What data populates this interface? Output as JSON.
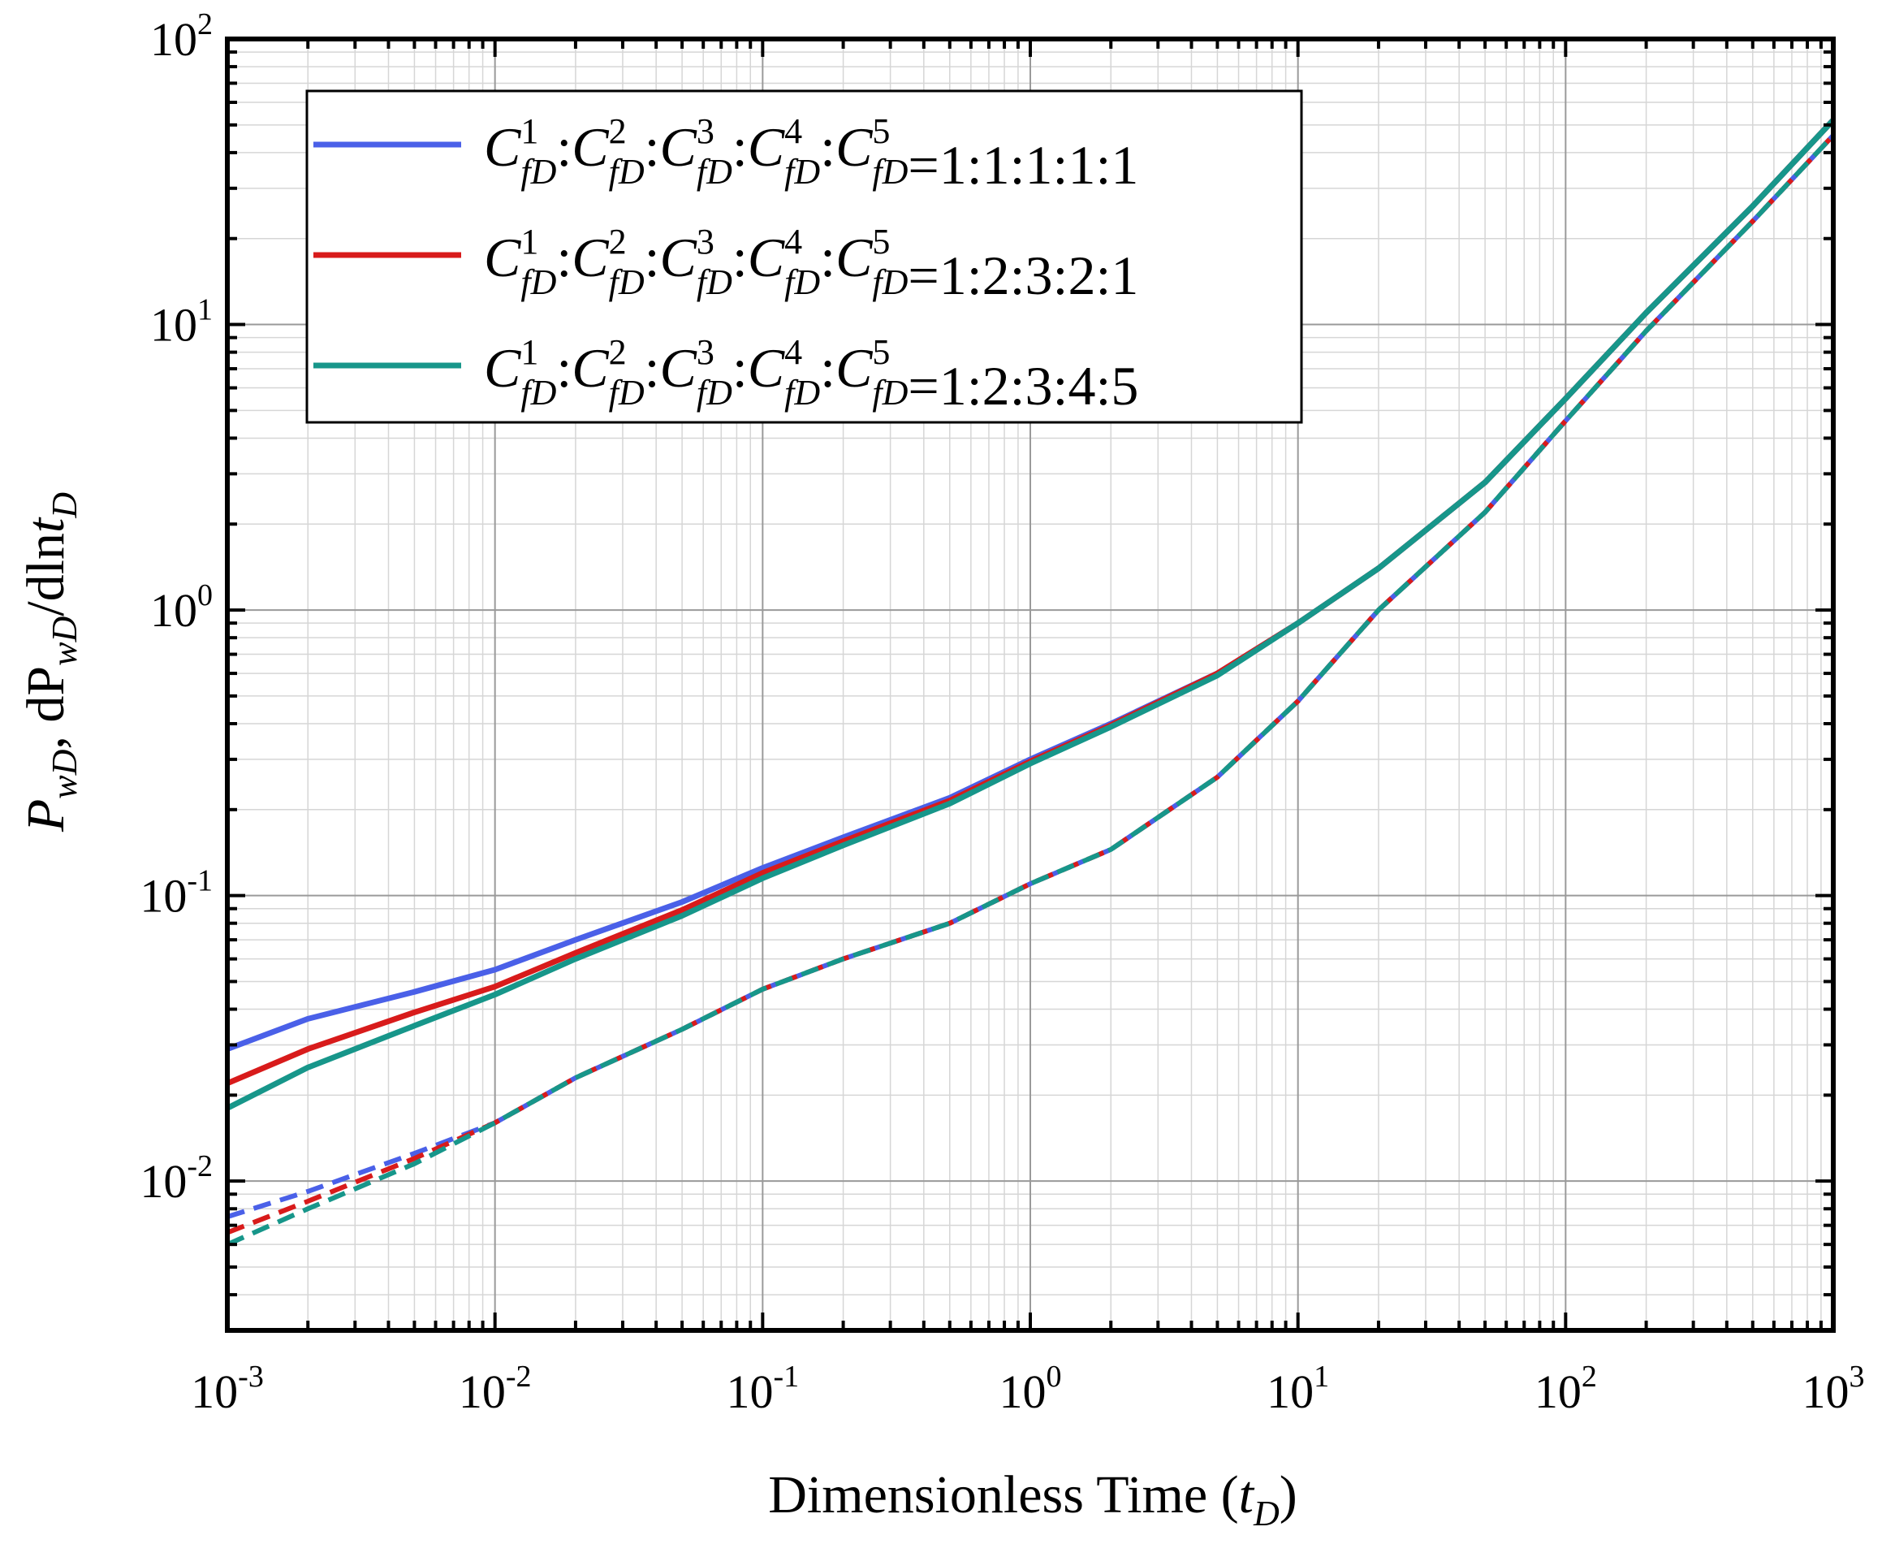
{
  "chart_data": {
    "type": "line",
    "scale": "log-log",
    "xlim": [
      0.001,
      1000
    ],
    "ylim": [
      0.003,
      100
    ],
    "grid": true,
    "legend_position": "top-left",
    "xlabel": {
      "main": "Dimensionless Time (",
      "var": "t",
      "sub": "D",
      "close": ")"
    },
    "ylabel": {
      "p1": "P",
      "s1": "wD",
      "mid": ", dP",
      "s2": "wD",
      "rest": "/dln",
      "var": "t",
      "s3": "D"
    },
    "x_ticks": [
      {
        "value": 0.001,
        "base": "10",
        "exp": "-3"
      },
      {
        "value": 0.01,
        "base": "10",
        "exp": "-2"
      },
      {
        "value": 0.1,
        "base": "10",
        "exp": "-1"
      },
      {
        "value": 1,
        "base": "10",
        "exp": "0"
      },
      {
        "value": 10,
        "base": "10",
        "exp": "1"
      },
      {
        "value": 100,
        "base": "10",
        "exp": "2"
      },
      {
        "value": 1000,
        "base": "10",
        "exp": "3"
      }
    ],
    "y_ticks": [
      {
        "value": 0.01,
        "base": "10",
        "exp": "-2"
      },
      {
        "value": 0.1,
        "base": "10",
        "exp": "-1"
      },
      {
        "value": 1,
        "base": "10",
        "exp": "0"
      },
      {
        "value": 10,
        "base": "10",
        "exp": "1"
      },
      {
        "value": 100,
        "base": "10",
        "exp": "2"
      }
    ],
    "legend_symbol": "C",
    "legend_sub": "fD",
    "series": [
      {
        "name": "C1:C2:C3:C4:C5=1:1:1:1:1",
        "ratio": "=1:1:1:1:1",
        "color": "#4a60e8",
        "pressure": [
          [
            0.001,
            0.029
          ],
          [
            0.002,
            0.037
          ],
          [
            0.005,
            0.046
          ],
          [
            0.01,
            0.055
          ],
          [
            0.02,
            0.07
          ],
          [
            0.05,
            0.095
          ],
          [
            0.1,
            0.125
          ],
          [
            0.2,
            0.16
          ],
          [
            0.5,
            0.22
          ],
          [
            1,
            0.3
          ],
          [
            2,
            0.4
          ],
          [
            5,
            0.6
          ],
          [
            10,
            0.9
          ],
          [
            20,
            1.4
          ],
          [
            50,
            2.8
          ],
          [
            100,
            5.5
          ],
          [
            200,
            11
          ],
          [
            500,
            26
          ],
          [
            1000,
            52
          ]
        ],
        "derivative": [
          [
            0.001,
            0.0075
          ],
          [
            0.002,
            0.0092
          ],
          [
            0.005,
            0.0125
          ],
          [
            0.01,
            0.016
          ],
          [
            0.02,
            0.023
          ],
          [
            0.05,
            0.034
          ],
          [
            0.1,
            0.047
          ],
          [
            0.2,
            0.06
          ],
          [
            0.5,
            0.08
          ],
          [
            1,
            0.11
          ],
          [
            2,
            0.145
          ],
          [
            5,
            0.26
          ],
          [
            10,
            0.48
          ],
          [
            20,
            1.0
          ],
          [
            50,
            2.2
          ],
          [
            100,
            4.6
          ],
          [
            200,
            9.5
          ],
          [
            500,
            23
          ],
          [
            1000,
            46
          ]
        ]
      },
      {
        "name": "C1:C2:C3:C4:C5=1:2:3:2:1",
        "ratio": "=1:2:3:2:1",
        "color": "#d81b1b",
        "pressure": [
          [
            0.001,
            0.022
          ],
          [
            0.002,
            0.029
          ],
          [
            0.005,
            0.039
          ],
          [
            0.01,
            0.048
          ],
          [
            0.02,
            0.063
          ],
          [
            0.05,
            0.089
          ],
          [
            0.1,
            0.12
          ],
          [
            0.2,
            0.155
          ],
          [
            0.5,
            0.215
          ],
          [
            1,
            0.295
          ],
          [
            2,
            0.395
          ],
          [
            5,
            0.6
          ],
          [
            10,
            0.9
          ],
          [
            20,
            1.4
          ],
          [
            50,
            2.8
          ],
          [
            100,
            5.5
          ],
          [
            200,
            11
          ],
          [
            500,
            26
          ],
          [
            1000,
            52
          ]
        ],
        "derivative": [
          [
            0.001,
            0.0066
          ],
          [
            0.002,
            0.0085
          ],
          [
            0.005,
            0.012
          ],
          [
            0.01,
            0.016
          ],
          [
            0.02,
            0.023
          ],
          [
            0.05,
            0.034
          ],
          [
            0.1,
            0.047
          ],
          [
            0.2,
            0.06
          ],
          [
            0.5,
            0.08
          ],
          [
            1,
            0.11
          ],
          [
            2,
            0.145
          ],
          [
            5,
            0.26
          ],
          [
            10,
            0.48
          ],
          [
            20,
            1.0
          ],
          [
            50,
            2.2
          ],
          [
            100,
            4.6
          ],
          [
            200,
            9.5
          ],
          [
            500,
            23
          ],
          [
            1000,
            46
          ]
        ]
      },
      {
        "name": "C1:C2:C3:C4:C5=1:2:3:4:5",
        "ratio": "=1:2:3:4:5",
        "color": "#17968a",
        "pressure": [
          [
            0.001,
            0.018
          ],
          [
            0.002,
            0.025
          ],
          [
            0.005,
            0.035
          ],
          [
            0.01,
            0.045
          ],
          [
            0.02,
            0.06
          ],
          [
            0.05,
            0.085
          ],
          [
            0.1,
            0.115
          ],
          [
            0.2,
            0.15
          ],
          [
            0.5,
            0.21
          ],
          [
            1,
            0.29
          ],
          [
            2,
            0.39
          ],
          [
            5,
            0.59
          ],
          [
            10,
            0.9
          ],
          [
            20,
            1.4
          ],
          [
            50,
            2.8
          ],
          [
            100,
            5.5
          ],
          [
            200,
            11
          ],
          [
            500,
            26
          ],
          [
            1000,
            52
          ]
        ],
        "derivative": [
          [
            0.001,
            0.006
          ],
          [
            0.002,
            0.008
          ],
          [
            0.005,
            0.0115
          ],
          [
            0.01,
            0.016
          ],
          [
            0.02,
            0.023
          ],
          [
            0.05,
            0.034
          ],
          [
            0.1,
            0.047
          ],
          [
            0.2,
            0.06
          ],
          [
            0.5,
            0.08
          ],
          [
            1,
            0.11
          ],
          [
            2,
            0.145
          ],
          [
            5,
            0.26
          ],
          [
            10,
            0.48
          ],
          [
            20,
            1.0
          ],
          [
            50,
            2.2
          ],
          [
            100,
            4.6
          ],
          [
            200,
            9.5
          ],
          [
            500,
            23
          ],
          [
            1000,
            46
          ]
        ]
      }
    ]
  }
}
